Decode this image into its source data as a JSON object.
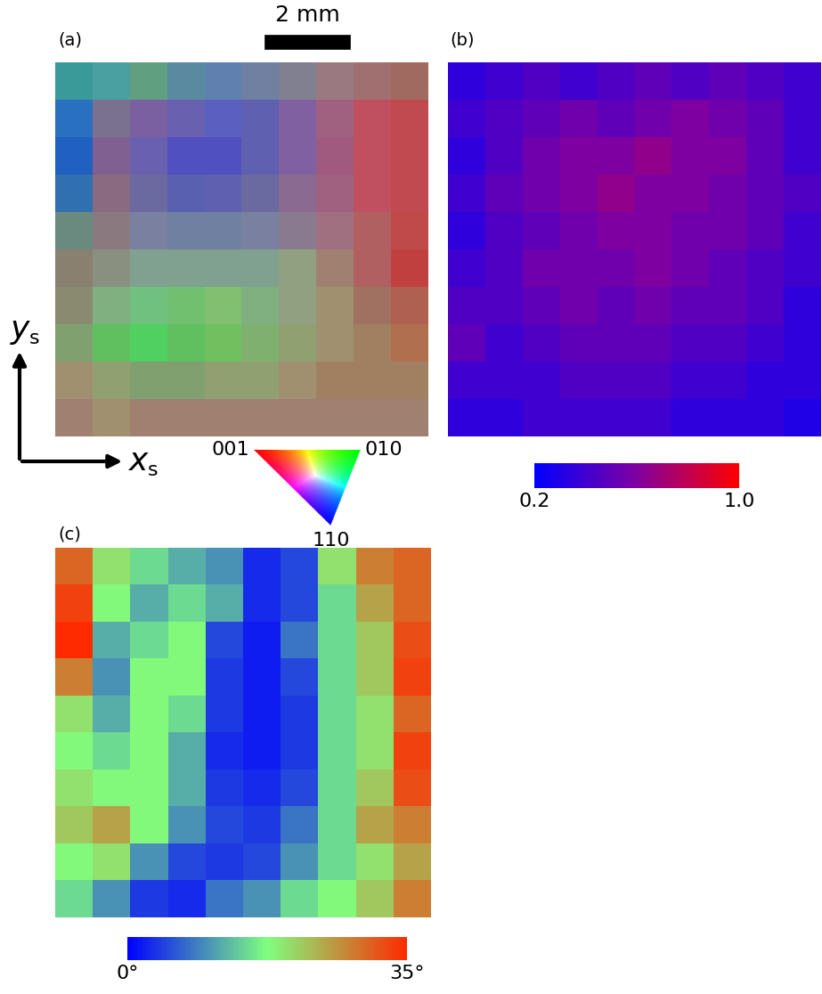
{
  "chart_data": [
    {
      "type": "image",
      "panel": "(a)",
      "scale_bar": "2 mm",
      "sample_axes": {
        "x": [
          "x",
          "s"
        ],
        "y": [
          "y",
          "s"
        ]
      },
      "colorkey": {
        "labels": [
          "001",
          "010",
          "110"
        ],
        "colors": [
          "#ff0000",
          "#00ff00",
          "#0000ff"
        ]
      },
      "tick_labels": false,
      "cells": [
        [
          "#3a9a9a",
          "#4aa0a0",
          "#60a080",
          "#5a8aa0",
          "#6080b0",
          "#7080a0",
          "#808090",
          "#9a7a80",
          "#a07070",
          "#a06a60"
        ],
        [
          "#2a70c0",
          "#7a7090",
          "#7a60a0",
          "#6a60b0",
          "#5a60c0",
          "#6060b0",
          "#8060a0",
          "#a06080",
          "#c05060",
          "#c04a50"
        ],
        [
          "#2060c0",
          "#806090",
          "#6a60b0",
          "#5050c0",
          "#5050c0",
          "#6060b0",
          "#8060a0",
          "#a05a80",
          "#c05060",
          "#c04a50"
        ],
        [
          "#3070b0",
          "#8a6a80",
          "#6a6aa0",
          "#5a60b0",
          "#6060b0",
          "#6a6aa0",
          "#8a6a90",
          "#a06080",
          "#c05060",
          "#c04a50"
        ],
        [
          "#6a8a80",
          "#8a7a80",
          "#7a80a0",
          "#7080a0",
          "#7080a0",
          "#7a80a0",
          "#8a7a90",
          "#a07080",
          "#b06060",
          "#c04a4a"
        ],
        [
          "#8a8070",
          "#8a9080",
          "#80a090",
          "#80a090",
          "#80a090",
          "#80a090",
          "#90a080",
          "#a08070",
          "#b06060",
          "#c04040"
        ],
        [
          "#8a8a70",
          "#80b080",
          "#70c080",
          "#70c070",
          "#80c070",
          "#80b080",
          "#90a080",
          "#a09070",
          "#a07060",
          "#b06050"
        ],
        [
          "#80a070",
          "#60c060",
          "#50d060",
          "#60c060",
          "#70c060",
          "#80b070",
          "#90a070",
          "#a09070",
          "#a08060",
          "#b07050"
        ],
        [
          "#a09070",
          "#90a070",
          "#80a070",
          "#80a070",
          "#90a070",
          "#90a070",
          "#a09070",
          "#a08060",
          "#a08060",
          "#a08060"
        ],
        [
          "#a08070",
          "#a09070",
          "#a08070",
          "#a08070",
          "#a08070",
          "#a08070",
          "#a08070",
          "#a08070",
          "#a08070",
          "#a08070"
        ]
      ]
    },
    {
      "type": "heatmap",
      "panel": "(b)",
      "tick_labels": false,
      "colorbar_range": [
        0.2,
        1.0
      ],
      "colorbar_ticks": [
        0.2,
        1.0
      ],
      "cells": [
        [
          0.35,
          0.4,
          0.45,
          0.4,
          0.45,
          0.5,
          0.45,
          0.5,
          0.45,
          0.4
        ],
        [
          0.4,
          0.45,
          0.5,
          0.55,
          0.5,
          0.55,
          0.6,
          0.55,
          0.5,
          0.4
        ],
        [
          0.35,
          0.45,
          0.55,
          0.6,
          0.6,
          0.65,
          0.6,
          0.6,
          0.5,
          0.4
        ],
        [
          0.4,
          0.5,
          0.55,
          0.6,
          0.65,
          0.6,
          0.6,
          0.55,
          0.5,
          0.45
        ],
        [
          0.35,
          0.45,
          0.5,
          0.55,
          0.6,
          0.6,
          0.55,
          0.55,
          0.5,
          0.4
        ],
        [
          0.4,
          0.45,
          0.55,
          0.55,
          0.55,
          0.6,
          0.55,
          0.5,
          0.45,
          0.4
        ],
        [
          0.45,
          0.45,
          0.5,
          0.55,
          0.5,
          0.55,
          0.5,
          0.5,
          0.45,
          0.35
        ],
        [
          0.5,
          0.4,
          0.45,
          0.5,
          0.5,
          0.5,
          0.45,
          0.45,
          0.4,
          0.35
        ],
        [
          0.4,
          0.4,
          0.4,
          0.45,
          0.45,
          0.45,
          0.4,
          0.4,
          0.35,
          0.35
        ],
        [
          0.35,
          0.35,
          0.4,
          0.4,
          0.4,
          0.4,
          0.35,
          0.35,
          0.35,
          0.3
        ]
      ]
    },
    {
      "type": "heatmap",
      "panel": "(c)",
      "tick_labels": false,
      "colorbar_range": [
        0,
        35
      ],
      "colorbar_ticks": [
        {
          "value": 0,
          "label": "0°"
        },
        {
          "value": 35,
          "label": "35°"
        }
      ],
      "cells": [
        [
          30,
          20,
          15,
          12,
          10,
          3,
          5,
          20,
          28,
          30
        ],
        [
          33,
          18,
          12,
          15,
          12,
          3,
          5,
          15,
          25,
          30
        ],
        [
          35,
          12,
          15,
          18,
          5,
          2,
          8,
          15,
          22,
          32
        ],
        [
          28,
          10,
          18,
          18,
          4,
          2,
          5,
          15,
          22,
          33
        ],
        [
          20,
          12,
          18,
          15,
          4,
          2,
          4,
          15,
          20,
          30
        ],
        [
          18,
          15,
          18,
          12,
          3,
          2,
          4,
          15,
          20,
          33
        ],
        [
          20,
          18,
          18,
          12,
          4,
          3,
          5,
          15,
          22,
          32
        ],
        [
          22,
          25,
          18,
          10,
          5,
          4,
          8,
          15,
          25,
          28
        ],
        [
          18,
          20,
          10,
          5,
          4,
          5,
          10,
          15,
          20,
          25
        ],
        [
          15,
          10,
          4,
          3,
          8,
          10,
          15,
          18,
          22,
          28
        ]
      ]
    }
  ]
}
